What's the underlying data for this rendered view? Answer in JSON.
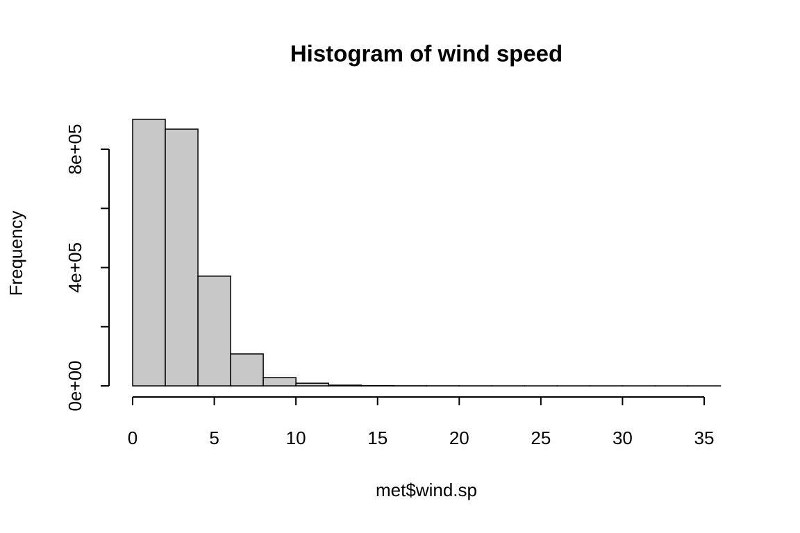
{
  "chart_data": {
    "type": "histogram",
    "title": "Histogram of wind speed",
    "x_label": "met$wind.sp",
    "y_label": "Frequency",
    "bins": [
      0,
      2,
      4,
      6,
      8,
      10,
      12,
      14,
      16,
      18,
      20,
      22,
      24,
      26,
      28,
      30,
      32,
      34,
      36
    ],
    "values": [
      901000,
      868000,
      371000,
      108000,
      28000,
      9000,
      2500,
      800,
      300,
      150,
      80,
      40,
      20,
      10,
      5,
      3,
      2,
      1
    ],
    "color": "#c8c8c8",
    "xlim": [
      0,
      36
    ],
    "xticks": [
      0,
      5,
      10,
      15,
      20,
      25,
      30,
      35
    ],
    "ylim": [
      0,
      901000
    ],
    "yticks": [
      {
        "value": 0,
        "label": "0e+00"
      },
      {
        "value": 200000,
        "label": null
      },
      {
        "value": 400000,
        "label": "4e+05"
      },
      {
        "value": 600000,
        "label": null
      },
      {
        "value": 800000,
        "label": "8e+05"
      }
    ]
  }
}
